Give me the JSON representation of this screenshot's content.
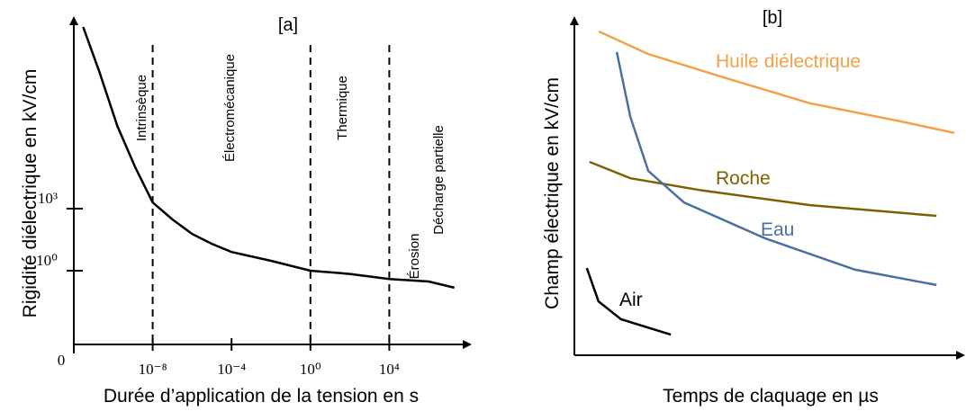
{
  "chart_data": [
    {
      "type": "line",
      "title": "[a]",
      "x_label": "Durée d’application de la tension en s",
      "y_label": "Rigidité diélectrique en kV/cm",
      "origin_label": "0",
      "xscale": "log",
      "yscale": "log",
      "xlim": [
        1e-12,
        100000000.0
      ],
      "ylim": [
        0.0001,
        1000000000000.0
      ],
      "xticks": [
        {
          "value": 1e-08,
          "label": "10⁻⁸"
        },
        {
          "value": 0.0001,
          "label": "10⁻⁴"
        },
        {
          "value": 1,
          "label": "10⁰"
        },
        {
          "value": 10000,
          "label": "10⁴"
        }
      ],
      "yticks": [
        {
          "value": 1,
          "label": "10⁰"
        },
        {
          "value": 1000,
          "label": "10³"
        }
      ],
      "vlines": [
        1e-08,
        1,
        10000
      ],
      "regions": [
        "Intrinsèque",
        "Électromécanique",
        "Thermique",
        "Érosion",
        "Décharge partielle"
      ],
      "color": "#000000",
      "x": [
        3e-12,
        2e-11,
        1.6e-10,
        1.3e-09,
        1e-08,
        1e-07,
        1e-06,
        1e-05,
        0.0001,
        0.01,
        1,
        100,
        10000,
        1000000,
        20000000
      ],
      "values": [
        600000000000,
        4000000000,
        10000000,
        100000,
        2000,
        300,
        60,
        20,
        8,
        3,
        1,
        0.7,
        0.4,
        0.3,
        0.15
      ]
    },
    {
      "type": "line",
      "title": "[b]",
      "x_label": "Temps de claquage en µs",
      "y_label": "Champ électrique en kV/cm",
      "xlim": [
        0,
        10
      ],
      "ylim": [
        0,
        10
      ],
      "series": [
        {
          "name": "Huile diélectrique",
          "color": "#f4a04a",
          "x": [
            0.63,
            1.9,
            3.75,
            6.06,
            8.38,
            9.77
          ],
          "values": [
            9.73,
            9.05,
            8.38,
            7.57,
            7.03,
            6.68
          ]
        },
        {
          "name": "Roche",
          "color": "#7f6000",
          "x": [
            0.39,
            1.44,
            3.29,
            6.06,
            9.31
          ],
          "values": [
            5.81,
            5.32,
            4.95,
            4.51,
            4.19
          ]
        },
        {
          "name": "Eau",
          "color": "#4a70a0",
          "x": [
            1.09,
            1.44,
            1.9,
            2.82,
            4.91,
            7.22,
            9.31
          ],
          "values": [
            9.11,
            7.16,
            5.54,
            4.59,
            3.51,
            2.57,
            2.11
          ]
        },
        {
          "name": "Air",
          "color": "#000000",
          "x": [
            0.32,
            0.62,
            1.2,
            2.48
          ],
          "values": [
            2.62,
            1.62,
            1.08,
            0.62
          ]
        }
      ]
    }
  ]
}
